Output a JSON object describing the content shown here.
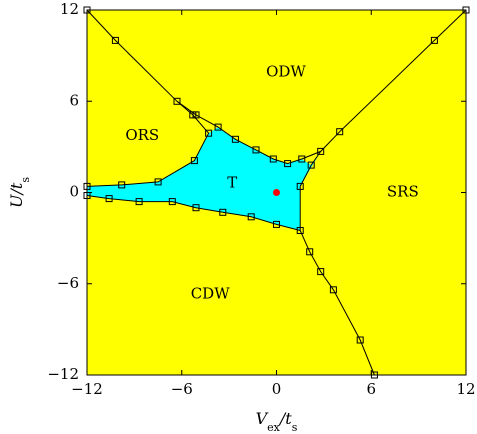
{
  "chart_data": {
    "type": "line",
    "title": "",
    "xlabel": "V_ex/t_s",
    "ylabel": "U/t_s",
    "xlim": [
      -12,
      12
    ],
    "ylim": [
      -12,
      12
    ],
    "xticks": [
      -12,
      -6,
      0,
      6,
      12
    ],
    "yticks": [
      -12,
      -6,
      0,
      6,
      12
    ],
    "xtick_labels": [
      "−12",
      "−6",
      "0",
      "6",
      "12"
    ],
    "ytick_labels": [
      "−12",
      "−6",
      "0",
      "6",
      "12"
    ],
    "background_color": "#ffff00",
    "region_color": "#00ffff",
    "marker_color": "#000000",
    "point_color": "#ff0000",
    "grid": false,
    "region_labels": [
      {
        "text": "ODW",
        "x": 0.6,
        "y": 7.9
      },
      {
        "text": "ORS",
        "x": -8.5,
        "y": 3.7
      },
      {
        "text": "T",
        "x": -2.8,
        "y": 0.6
      },
      {
        "text": "SRS",
        "x": 8.0,
        "y": 0.0
      },
      {
        "text": "CDW",
        "x": -4.2,
        "y": -6.7
      }
    ],
    "region_boundary": [
      [
        -12,
        0.4
      ],
      [
        -9.8,
        0.5
      ],
      [
        -7.5,
        0.7
      ],
      [
        -5.2,
        2.1
      ],
      [
        -4.3,
        3.9
      ],
      [
        -3.7,
        4.3
      ],
      [
        -2.6,
        3.5
      ],
      [
        -1.3,
        2.8
      ],
      [
        -0.2,
        2.2
      ],
      [
        0.7,
        1.9
      ],
      [
        1.6,
        2.2
      ],
      [
        2.2,
        1.8
      ],
      [
        2.8,
        2.7
      ],
      [
        1.5,
        0.4
      ],
      [
        1.5,
        -2.5
      ],
      [
        0,
        -2.1
      ],
      [
        -1.6,
        -1.6
      ],
      [
        -3.4,
        -1.3
      ],
      [
        -5.1,
        -1.0
      ],
      [
        -6.6,
        -0.6
      ],
      [
        -8.7,
        -0.6
      ],
      [
        -10.6,
        -0.4
      ],
      [
        -12,
        -0.2
      ]
    ],
    "series": [
      {
        "points": [
          [
            -12,
            12
          ],
          [
            -10.2,
            10
          ],
          [
            -6.3,
            6
          ],
          [
            -5.1,
            5.1
          ],
          [
            -3.7,
            4.3
          ],
          [
            -2.6,
            3.5
          ],
          [
            -1.3,
            2.8
          ],
          [
            -0.2,
            2.2
          ],
          [
            0.7,
            1.9
          ],
          [
            1.6,
            2.2
          ],
          [
            2.8,
            2.7
          ],
          [
            4,
            4
          ],
          [
            10,
            10
          ],
          [
            12,
            12
          ]
        ]
      },
      {
        "points": [
          [
            -6.3,
            6
          ],
          [
            -5.3,
            5.1
          ],
          [
            -4.3,
            3.9
          ],
          [
            -5.2,
            2.1
          ],
          [
            -7.5,
            0.7
          ],
          [
            -9.8,
            0.5
          ],
          [
            -12,
            0.4
          ]
        ]
      },
      {
        "points": [
          [
            2.8,
            2.7
          ],
          [
            2.2,
            1.8
          ],
          [
            1.5,
            0.4
          ],
          [
            1.5,
            -2.5
          ],
          [
            2.1,
            -3.9
          ],
          [
            2.8,
            -5.2
          ],
          [
            3.6,
            -6.4
          ],
          [
            5.3,
            -9.7
          ],
          [
            6.2,
            -12
          ]
        ]
      },
      {
        "points": [
          [
            -12,
            -0.2
          ],
          [
            -10.6,
            -0.4
          ],
          [
            -8.7,
            -0.6
          ],
          [
            -6.6,
            -0.6
          ],
          [
            -5.1,
            -1.0
          ],
          [
            -3.4,
            -1.3
          ],
          [
            -1.6,
            -1.6
          ],
          [
            0,
            -2.1
          ],
          [
            1.5,
            -2.5
          ]
        ]
      }
    ],
    "highlight_point": {
      "x": 0,
      "y": 0
    }
  }
}
